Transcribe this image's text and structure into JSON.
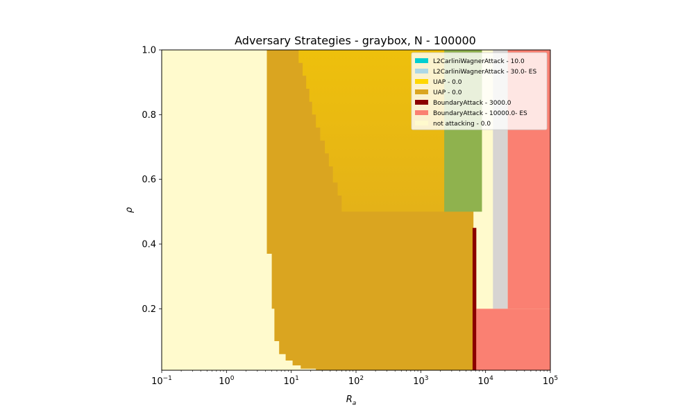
{
  "chart_data": {
    "type": "heatmap",
    "title": "Adversary Strategies - graybox, N - 100000",
    "xlabel": "R",
    "xlabel_sub": "a",
    "ylabel": "ρ",
    "xscale": "log",
    "xlim": [
      0.1,
      100000
    ],
    "ylim": [
      0.01,
      1.0
    ],
    "grid": false,
    "legend_position": "top-right",
    "x_ticks": [
      {
        "value": 0.1,
        "base": "10",
        "exp": "−1"
      },
      {
        "value": 1,
        "base": "10",
        "exp": "0"
      },
      {
        "value": 10,
        "base": "10",
        "exp": "1"
      },
      {
        "value": 100,
        "base": "10",
        "exp": "2"
      },
      {
        "value": 1000,
        "base": "10",
        "exp": "3"
      },
      {
        "value": 10000,
        "base": "10",
        "exp": "4"
      },
      {
        "value": 100000,
        "base": "10",
        "exp": "5"
      }
    ],
    "y_ticks": [
      {
        "value": 0.2,
        "label": "0.2"
      },
      {
        "value": 0.4,
        "label": "0.4"
      },
      {
        "value": 0.6,
        "label": "0.6"
      },
      {
        "value": 0.8,
        "label": "0.8"
      },
      {
        "value": 1.0,
        "label": "1.0"
      }
    ],
    "legend": [
      {
        "label": "L2CarliniWagnerAttack - 10.0",
        "color": "#00CED1"
      },
      {
        "label": "L2CarliniWagnerAttack - 30.0- ES",
        "color": "#ADD8E6"
      },
      {
        "label": "UAP - 0.0",
        "color": "#FFD700"
      },
      {
        "label": "UAP - 0.0",
        "color": "#DAA520"
      },
      {
        "label": "BoundaryAttack - 3000.0",
        "color": "#8B0000"
      },
      {
        "label": "BoundaryAttack - 10000.0- ES",
        "color": "#FA8072"
      },
      {
        "label": "not attacking - 0.0",
        "color": "#FFFACD"
      }
    ],
    "regions": [
      {
        "strategy": "not attacking - 0.0",
        "color": "#FFFACD",
        "x": [
          0.1,
          100000
        ],
        "y": [
          0.01,
          1.0
        ]
      },
      {
        "strategy": "UAP - 0.0",
        "color": "#DAA520",
        "boundary": [
          [
            24,
            0.01
          ],
          [
            24,
            0.015
          ],
          [
            14,
            0.015
          ],
          [
            14,
            0.025
          ],
          [
            10.5,
            0.025
          ],
          [
            10.5,
            0.04
          ],
          [
            8.2,
            0.04
          ],
          [
            8.2,
            0.06
          ],
          [
            6.5,
            0.06
          ],
          [
            6.5,
            0.1
          ],
          [
            5.5,
            0.1
          ],
          [
            5.5,
            0.2
          ],
          [
            5.0,
            0.2
          ],
          [
            5.0,
            0.37
          ],
          [
            4.2,
            0.37
          ],
          [
            4.2,
            1.0
          ],
          [
            6500,
            1.0
          ],
          [
            6500,
            0.01
          ]
        ]
      },
      {
        "strategy": "UAP - 0.0",
        "color": "#EEC110",
        "boundary": [
          [
            13,
            1.0
          ],
          [
            13,
            0.96
          ],
          [
            15,
            0.96
          ],
          [
            15,
            0.92
          ],
          [
            17,
            0.92
          ],
          [
            17,
            0.88
          ],
          [
            19,
            0.88
          ],
          [
            19,
            0.84
          ],
          [
            21,
            0.84
          ],
          [
            21,
            0.8
          ],
          [
            24,
            0.8
          ],
          [
            24,
            0.76
          ],
          [
            28,
            0.76
          ],
          [
            28,
            0.72
          ],
          [
            33,
            0.72
          ],
          [
            33,
            0.68
          ],
          [
            38,
            0.68
          ],
          [
            38,
            0.64
          ],
          [
            44,
            0.64
          ],
          [
            44,
            0.59
          ],
          [
            52,
            0.59
          ],
          [
            52,
            0.55
          ],
          [
            60,
            0.55
          ],
          [
            60,
            0.5
          ],
          [
            6500,
            0.5
          ],
          [
            6500,
            1.0
          ]
        ]
      },
      {
        "strategy": "L2CarliniWagnerAttack - 10.0",
        "color": "#8FB24E",
        "x": [
          2300,
          8800
        ],
        "y": [
          0.5,
          1.0
        ]
      },
      {
        "strategy": "L2CarliniWagnerAttack - 30.0- ES",
        "color": "#D7D4D2",
        "x": [
          13000,
          22000
        ],
        "y": [
          0.2,
          1.0
        ]
      },
      {
        "strategy": "BoundaryAttack - 3000.0",
        "color": "#8B0000",
        "x": [
          6300,
          7200
        ],
        "y": [
          0.01,
          0.45
        ]
      },
      {
        "strategy": "BoundaryAttack - 10000.0- ES",
        "color": "#FA8072",
        "x": [
          7200,
          100000
        ],
        "y": [
          0.01,
          0.2
        ]
      },
      {
        "strategy": "BoundaryAttack - 10000.0- ES",
        "color": "#FA8072",
        "x": [
          22000,
          100000
        ],
        "y": [
          0.2,
          1.0
        ]
      }
    ]
  }
}
